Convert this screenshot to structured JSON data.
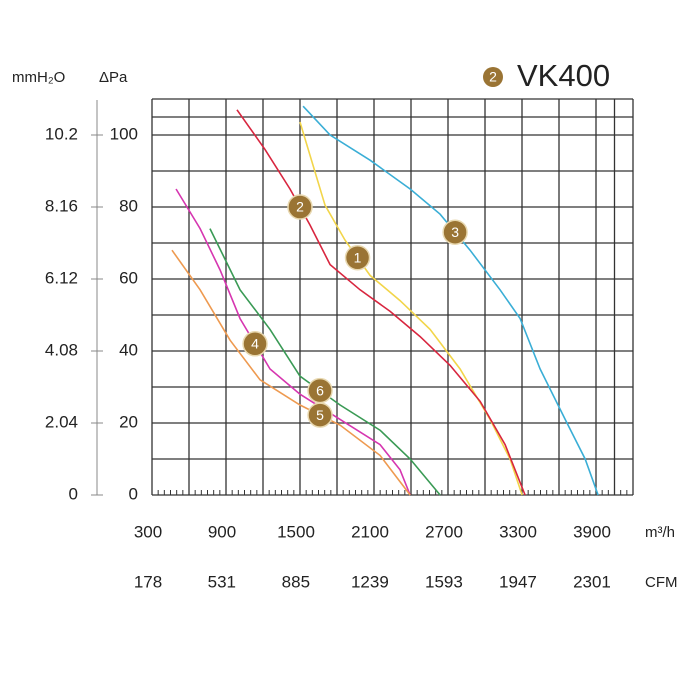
{
  "chart_data": {
    "type": "line",
    "title": "VK400",
    "title_badge": "2",
    "y_label": "ΔPa",
    "y2_label": "mmH₂O",
    "x_label": "m³/h",
    "x2_label": "CFM",
    "xlim": [
      300,
      4200
    ],
    "xticks": [
      300,
      900,
      1500,
      2100,
      2700,
      3300,
      3900
    ],
    "x2lim": [
      178,
      2478
    ],
    "x2ticks": [
      178,
      531,
      885,
      1239,
      1593,
      1947,
      2301
    ],
    "ylim": [
      0,
      110
    ],
    "yticks": [
      0,
      20,
      40,
      60,
      80,
      100
    ],
    "y2lim": [
      0,
      11.22
    ],
    "y2ticks": [
      0,
      2.04,
      4.08,
      6.12,
      8.16,
      10.2
    ],
    "grid": true,
    "badge_color": "#9a7434",
    "series": [
      {
        "name": "1",
        "color": "#f2d54a",
        "x": [
          1500,
          1703,
          1865,
          2068,
          2311,
          2555,
          2798,
          3041,
          3203,
          3301
        ],
        "values": [
          103.6,
          80.5,
          70.8,
          61,
          54,
          46,
          35,
          21,
          10,
          0
        ]
      },
      {
        "name": "2",
        "color": "#d8263f",
        "x": [
          989,
          1216,
          1419,
          1581,
          1744,
          1987,
          2231,
          2474,
          2717,
          2961,
          3163,
          3325
        ],
        "values": [
          107,
          96,
          85,
          75,
          64,
          57,
          51,
          44,
          36,
          26,
          14,
          0
        ]
      },
      {
        "name": "3",
        "color": "#3aaed6",
        "x": [
          1525,
          1744,
          2068,
          2393,
          2636,
          2879,
          3122,
          3285,
          3447,
          3650,
          3812,
          3917
        ],
        "values": [
          108,
          100,
          93,
          85,
          78,
          68,
          57,
          49,
          35,
          21,
          10,
          0
        ]
      },
      {
        "name": "4",
        "color": "#d636b0",
        "x": [
          495,
          690,
          852,
          1014,
          1257,
          1500,
          1825,
          2149,
          2311,
          2393
        ],
        "values": [
          85,
          74,
          62.5,
          49,
          35,
          28,
          21,
          14,
          7,
          0
        ]
      },
      {
        "name": "5",
        "color": "#ee9a50",
        "x": [
          462,
          690,
          933,
          1176,
          1500,
          1825,
          2149,
          2393
        ],
        "values": [
          68,
          57,
          43,
          32,
          25,
          19.4,
          11,
          0
        ]
      },
      {
        "name": "6",
        "color": "#3a9a55",
        "x": [
          770,
          1014,
          1257,
          1500,
          1825,
          2149,
          2393,
          2636
        ],
        "values": [
          74,
          57,
          46,
          33,
          25,
          18,
          10,
          0
        ]
      }
    ]
  }
}
